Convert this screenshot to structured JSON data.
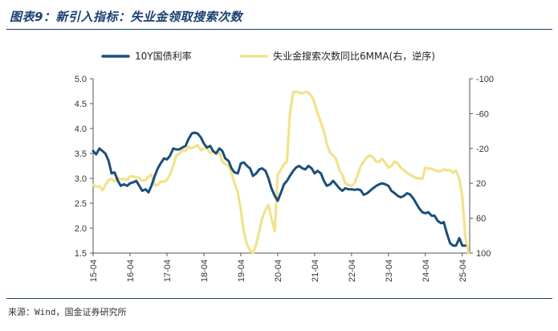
{
  "figure": {
    "title": "图表9：新引入指标：失业金领取搜索次数",
    "source": "来源：Wind，国金证券研究所"
  },
  "chart_data": {
    "type": "line",
    "x_tick_labels": [
      "15-04",
      "16-04",
      "17-04",
      "18-04",
      "19-04",
      "20-04",
      "21-04",
      "22-04",
      "23-04",
      "24-04",
      "25-04"
    ],
    "x_range": [
      2015.25,
      2025.45
    ],
    "left_axis": {
      "ylim": [
        1.5,
        5.0
      ],
      "ticks": [
        "1.5",
        "2.0",
        "2.5",
        "3.0",
        "3.5",
        "4.0",
        "4.5",
        "5.0"
      ]
    },
    "right_axis": {
      "ylim": [
        -100,
        100
      ],
      "inverted": true,
      "ticks": [
        "-100",
        "-60",
        "-20",
        "20",
        "60",
        "100"
      ]
    },
    "legend": {
      "position": "top"
    },
    "series": [
      {
        "name": "10Y国债利率",
        "axis": "left",
        "color": "#1b4f7a",
        "points": [
          [
            2015.25,
            3.55
          ],
          [
            2015.33,
            3.48
          ],
          [
            2015.42,
            3.6
          ],
          [
            2015.58,
            3.5
          ],
          [
            2015.67,
            3.35
          ],
          [
            2015.75,
            3.1
          ],
          [
            2015.83,
            3.12
          ],
          [
            2015.92,
            2.95
          ],
          [
            2016.0,
            2.85
          ],
          [
            2016.08,
            2.88
          ],
          [
            2016.17,
            2.85
          ],
          [
            2016.25,
            2.9
          ],
          [
            2016.33,
            2.92
          ],
          [
            2016.42,
            2.95
          ],
          [
            2016.58,
            2.75
          ],
          [
            2016.67,
            2.78
          ],
          [
            2016.75,
            2.72
          ],
          [
            2016.83,
            2.85
          ],
          [
            2016.92,
            3.05
          ],
          [
            2017.0,
            3.2
          ],
          [
            2017.08,
            3.3
          ],
          [
            2017.17,
            3.4
          ],
          [
            2017.25,
            3.38
          ],
          [
            2017.33,
            3.45
          ],
          [
            2017.42,
            3.6
          ],
          [
            2017.5,
            3.58
          ],
          [
            2017.58,
            3.58
          ],
          [
            2017.67,
            3.62
          ],
          [
            2017.75,
            3.65
          ],
          [
            2017.83,
            3.78
          ],
          [
            2017.92,
            3.9
          ],
          [
            2018.0,
            3.92
          ],
          [
            2018.08,
            3.9
          ],
          [
            2018.17,
            3.82
          ],
          [
            2018.25,
            3.7
          ],
          [
            2018.33,
            3.62
          ],
          [
            2018.42,
            3.65
          ],
          [
            2018.5,
            3.55
          ],
          [
            2018.58,
            3.5
          ],
          [
            2018.67,
            3.6
          ],
          [
            2018.75,
            3.55
          ],
          [
            2018.83,
            3.4
          ],
          [
            2018.92,
            3.35
          ],
          [
            2019.0,
            3.2
          ],
          [
            2019.08,
            3.12
          ],
          [
            2019.17,
            3.1
          ],
          [
            2019.25,
            3.3
          ],
          [
            2019.33,
            3.32
          ],
          [
            2019.42,
            3.25
          ],
          [
            2019.5,
            3.2
          ],
          [
            2019.58,
            3.05
          ],
          [
            2019.67,
            3.1
          ],
          [
            2019.75,
            3.18
          ],
          [
            2019.83,
            3.2
          ],
          [
            2019.92,
            3.15
          ],
          [
            2020.0,
            3.0
          ],
          [
            2020.08,
            2.8
          ],
          [
            2020.17,
            2.65
          ],
          [
            2020.25,
            2.55
          ],
          [
            2020.33,
            2.7
          ],
          [
            2020.42,
            2.88
          ],
          [
            2020.5,
            2.95
          ],
          [
            2020.58,
            3.05
          ],
          [
            2020.67,
            3.15
          ],
          [
            2020.75,
            3.22
          ],
          [
            2020.83,
            3.25
          ],
          [
            2020.92,
            3.2
          ],
          [
            2021.0,
            3.18
          ],
          [
            2021.08,
            3.25
          ],
          [
            2021.17,
            3.2
          ],
          [
            2021.25,
            3.1
          ],
          [
            2021.33,
            3.15
          ],
          [
            2021.42,
            3.1
          ],
          [
            2021.5,
            2.95
          ],
          [
            2021.58,
            2.85
          ],
          [
            2021.67,
            2.88
          ],
          [
            2021.75,
            2.95
          ],
          [
            2021.83,
            2.88
          ],
          [
            2021.92,
            2.8
          ],
          [
            2022.0,
            2.75
          ],
          [
            2022.08,
            2.8
          ],
          [
            2022.17,
            2.78
          ],
          [
            2022.25,
            2.78
          ],
          [
            2022.33,
            2.77
          ],
          [
            2022.42,
            2.78
          ],
          [
            2022.5,
            2.76
          ],
          [
            2022.58,
            2.67
          ],
          [
            2022.67,
            2.7
          ],
          [
            2022.75,
            2.75
          ],
          [
            2022.83,
            2.8
          ],
          [
            2022.92,
            2.85
          ],
          [
            2023.0,
            2.88
          ],
          [
            2023.08,
            2.9
          ],
          [
            2023.17,
            2.88
          ],
          [
            2023.25,
            2.85
          ],
          [
            2023.33,
            2.75
          ],
          [
            2023.42,
            2.7
          ],
          [
            2023.5,
            2.65
          ],
          [
            2023.58,
            2.62
          ],
          [
            2023.67,
            2.65
          ],
          [
            2023.75,
            2.7
          ],
          [
            2023.83,
            2.68
          ],
          [
            2023.92,
            2.6
          ],
          [
            2024.0,
            2.5
          ],
          [
            2024.08,
            2.4
          ],
          [
            2024.17,
            2.32
          ],
          [
            2024.25,
            2.3
          ],
          [
            2024.33,
            2.32
          ],
          [
            2024.42,
            2.25
          ],
          [
            2024.5,
            2.25
          ],
          [
            2024.58,
            2.15
          ],
          [
            2024.67,
            2.1
          ],
          [
            2024.75,
            2.12
          ],
          [
            2024.83,
            1.9
          ],
          [
            2024.92,
            1.7
          ],
          [
            2025.0,
            1.65
          ],
          [
            2025.08,
            1.65
          ],
          [
            2025.17,
            1.8
          ],
          [
            2025.25,
            1.65
          ],
          [
            2025.33,
            1.65
          ]
        ]
      },
      {
        "name": "失业金搜索次数同比6MMA(右，逆序)",
        "axis": "right",
        "color": "#f2e28b",
        "points": [
          [
            2015.25,
            22
          ],
          [
            2015.33,
            24
          ],
          [
            2015.42,
            23
          ],
          [
            2015.5,
            28
          ],
          [
            2015.58,
            22
          ],
          [
            2015.67,
            16
          ],
          [
            2015.75,
            15
          ],
          [
            2015.83,
            18
          ],
          [
            2015.92,
            14
          ],
          [
            2016.0,
            15
          ],
          [
            2016.08,
            15
          ],
          [
            2016.17,
            16
          ],
          [
            2016.25,
            12
          ],
          [
            2016.33,
            12
          ],
          [
            2016.42,
            13
          ],
          [
            2016.5,
            14
          ],
          [
            2016.58,
            17
          ],
          [
            2016.67,
            16
          ],
          [
            2016.75,
            12
          ],
          [
            2016.83,
            10
          ],
          [
            2016.92,
            22
          ],
          [
            2017.0,
            22
          ],
          [
            2017.08,
            18
          ],
          [
            2017.17,
            18
          ],
          [
            2017.25,
            16
          ],
          [
            2017.33,
            10
          ],
          [
            2017.42,
            0
          ],
          [
            2017.5,
            -12
          ],
          [
            2017.58,
            -14
          ],
          [
            2017.67,
            -18
          ],
          [
            2017.75,
            -17
          ],
          [
            2017.83,
            -22
          ],
          [
            2017.92,
            -20
          ],
          [
            2018.0,
            -22
          ],
          [
            2018.08,
            -24
          ],
          [
            2018.17,
            -18
          ],
          [
            2018.25,
            -20
          ],
          [
            2018.33,
            -20
          ],
          [
            2018.42,
            -15
          ],
          [
            2018.5,
            -16
          ],
          [
            2018.58,
            -14
          ],
          [
            2018.67,
            -15
          ],
          [
            2018.75,
            -5
          ],
          [
            2018.83,
            -2
          ],
          [
            2018.92,
            0
          ],
          [
            2019.0,
            8
          ],
          [
            2019.08,
            20
          ],
          [
            2019.17,
            30
          ],
          [
            2019.25,
            50
          ],
          [
            2019.33,
            75
          ],
          [
            2019.42,
            90
          ],
          [
            2019.5,
            97
          ],
          [
            2019.58,
            100
          ],
          [
            2019.67,
            90
          ],
          [
            2019.75,
            75
          ],
          [
            2019.83,
            60
          ],
          [
            2019.92,
            50
          ],
          [
            2020.0,
            45
          ],
          [
            2020.08,
            60
          ],
          [
            2020.17,
            75
          ],
          [
            2020.25,
            10
          ],
          [
            2020.33,
            5
          ],
          [
            2020.42,
            -2
          ],
          [
            2020.5,
            -5
          ],
          [
            2020.58,
            -60
          ],
          [
            2020.67,
            -85
          ],
          [
            2020.75,
            -85
          ],
          [
            2020.83,
            -84
          ],
          [
            2020.92,
            -83
          ],
          [
            2021.0,
            -85
          ],
          [
            2021.08,
            -84
          ],
          [
            2021.17,
            -80
          ],
          [
            2021.25,
            -72
          ],
          [
            2021.33,
            -60
          ],
          [
            2021.42,
            -50
          ],
          [
            2021.5,
            -40
          ],
          [
            2021.58,
            -25
          ],
          [
            2021.67,
            -15
          ],
          [
            2021.75,
            -12
          ],
          [
            2021.83,
            -8
          ],
          [
            2021.92,
            5
          ],
          [
            2022.0,
            10
          ],
          [
            2022.08,
            20
          ],
          [
            2022.17,
            22
          ],
          [
            2022.25,
            23
          ],
          [
            2022.33,
            20
          ],
          [
            2022.42,
            10
          ],
          [
            2022.5,
            0
          ],
          [
            2022.58,
            -5
          ],
          [
            2022.67,
            -10
          ],
          [
            2022.75,
            -12
          ],
          [
            2022.83,
            -10
          ],
          [
            2022.92,
            -5
          ],
          [
            2023.0,
            -5
          ],
          [
            2023.08,
            -8
          ],
          [
            2023.17,
            -3
          ],
          [
            2023.25,
            2
          ],
          [
            2023.33,
            0
          ],
          [
            2023.42,
            -5
          ],
          [
            2023.5,
            -3
          ],
          [
            2023.58,
            2
          ],
          [
            2023.67,
            5
          ],
          [
            2023.75,
            8
          ],
          [
            2023.83,
            10
          ],
          [
            2023.92,
            12
          ],
          [
            2024.0,
            14
          ],
          [
            2024.08,
            14
          ],
          [
            2024.17,
            15
          ],
          [
            2024.25,
            2
          ],
          [
            2024.33,
            3
          ],
          [
            2024.42,
            3
          ],
          [
            2024.5,
            5
          ],
          [
            2024.58,
            6
          ],
          [
            2024.67,
            6
          ],
          [
            2024.75,
            4
          ],
          [
            2024.83,
            5
          ],
          [
            2024.92,
            5
          ],
          [
            2025.0,
            8
          ],
          [
            2025.08,
            5
          ],
          [
            2025.17,
            15
          ],
          [
            2025.25,
            35
          ],
          [
            2025.33,
            80
          ],
          [
            2025.42,
            100
          ]
        ]
      }
    ]
  }
}
